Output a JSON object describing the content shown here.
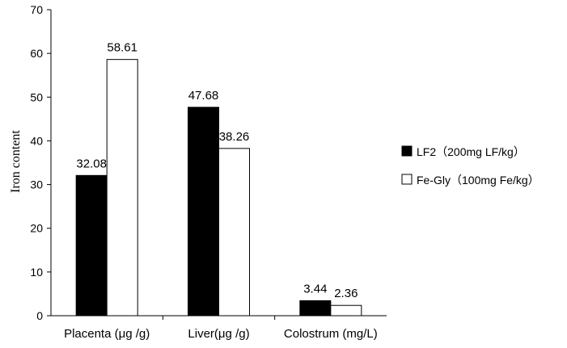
{
  "chart_data": {
    "type": "bar",
    "categories": [
      "Placenta (μg /g)",
      "Liver(μg /g)",
      "Colostrum (mg/L)"
    ],
    "series": [
      {
        "name": "LF2（200mg LF/kg）",
        "values": [
          32.08,
          47.68,
          3.44
        ],
        "color": "#000000"
      },
      {
        "name": "Fe-Gly（100mg Fe/kg）",
        "values": [
          58.61,
          38.26,
          2.36
        ],
        "color": "#ffffff"
      }
    ],
    "data_labels": [
      [
        "32.08",
        "47.68",
        "3.44"
      ],
      [
        "58.61",
        "38.26",
        "2.36"
      ]
    ],
    "ylabel": "Iron content",
    "ylim": [
      0,
      70
    ],
    "yticks": [
      0,
      10,
      20,
      30,
      40,
      50,
      60,
      70
    ],
    "grid": false,
    "legend_position": "right"
  }
}
